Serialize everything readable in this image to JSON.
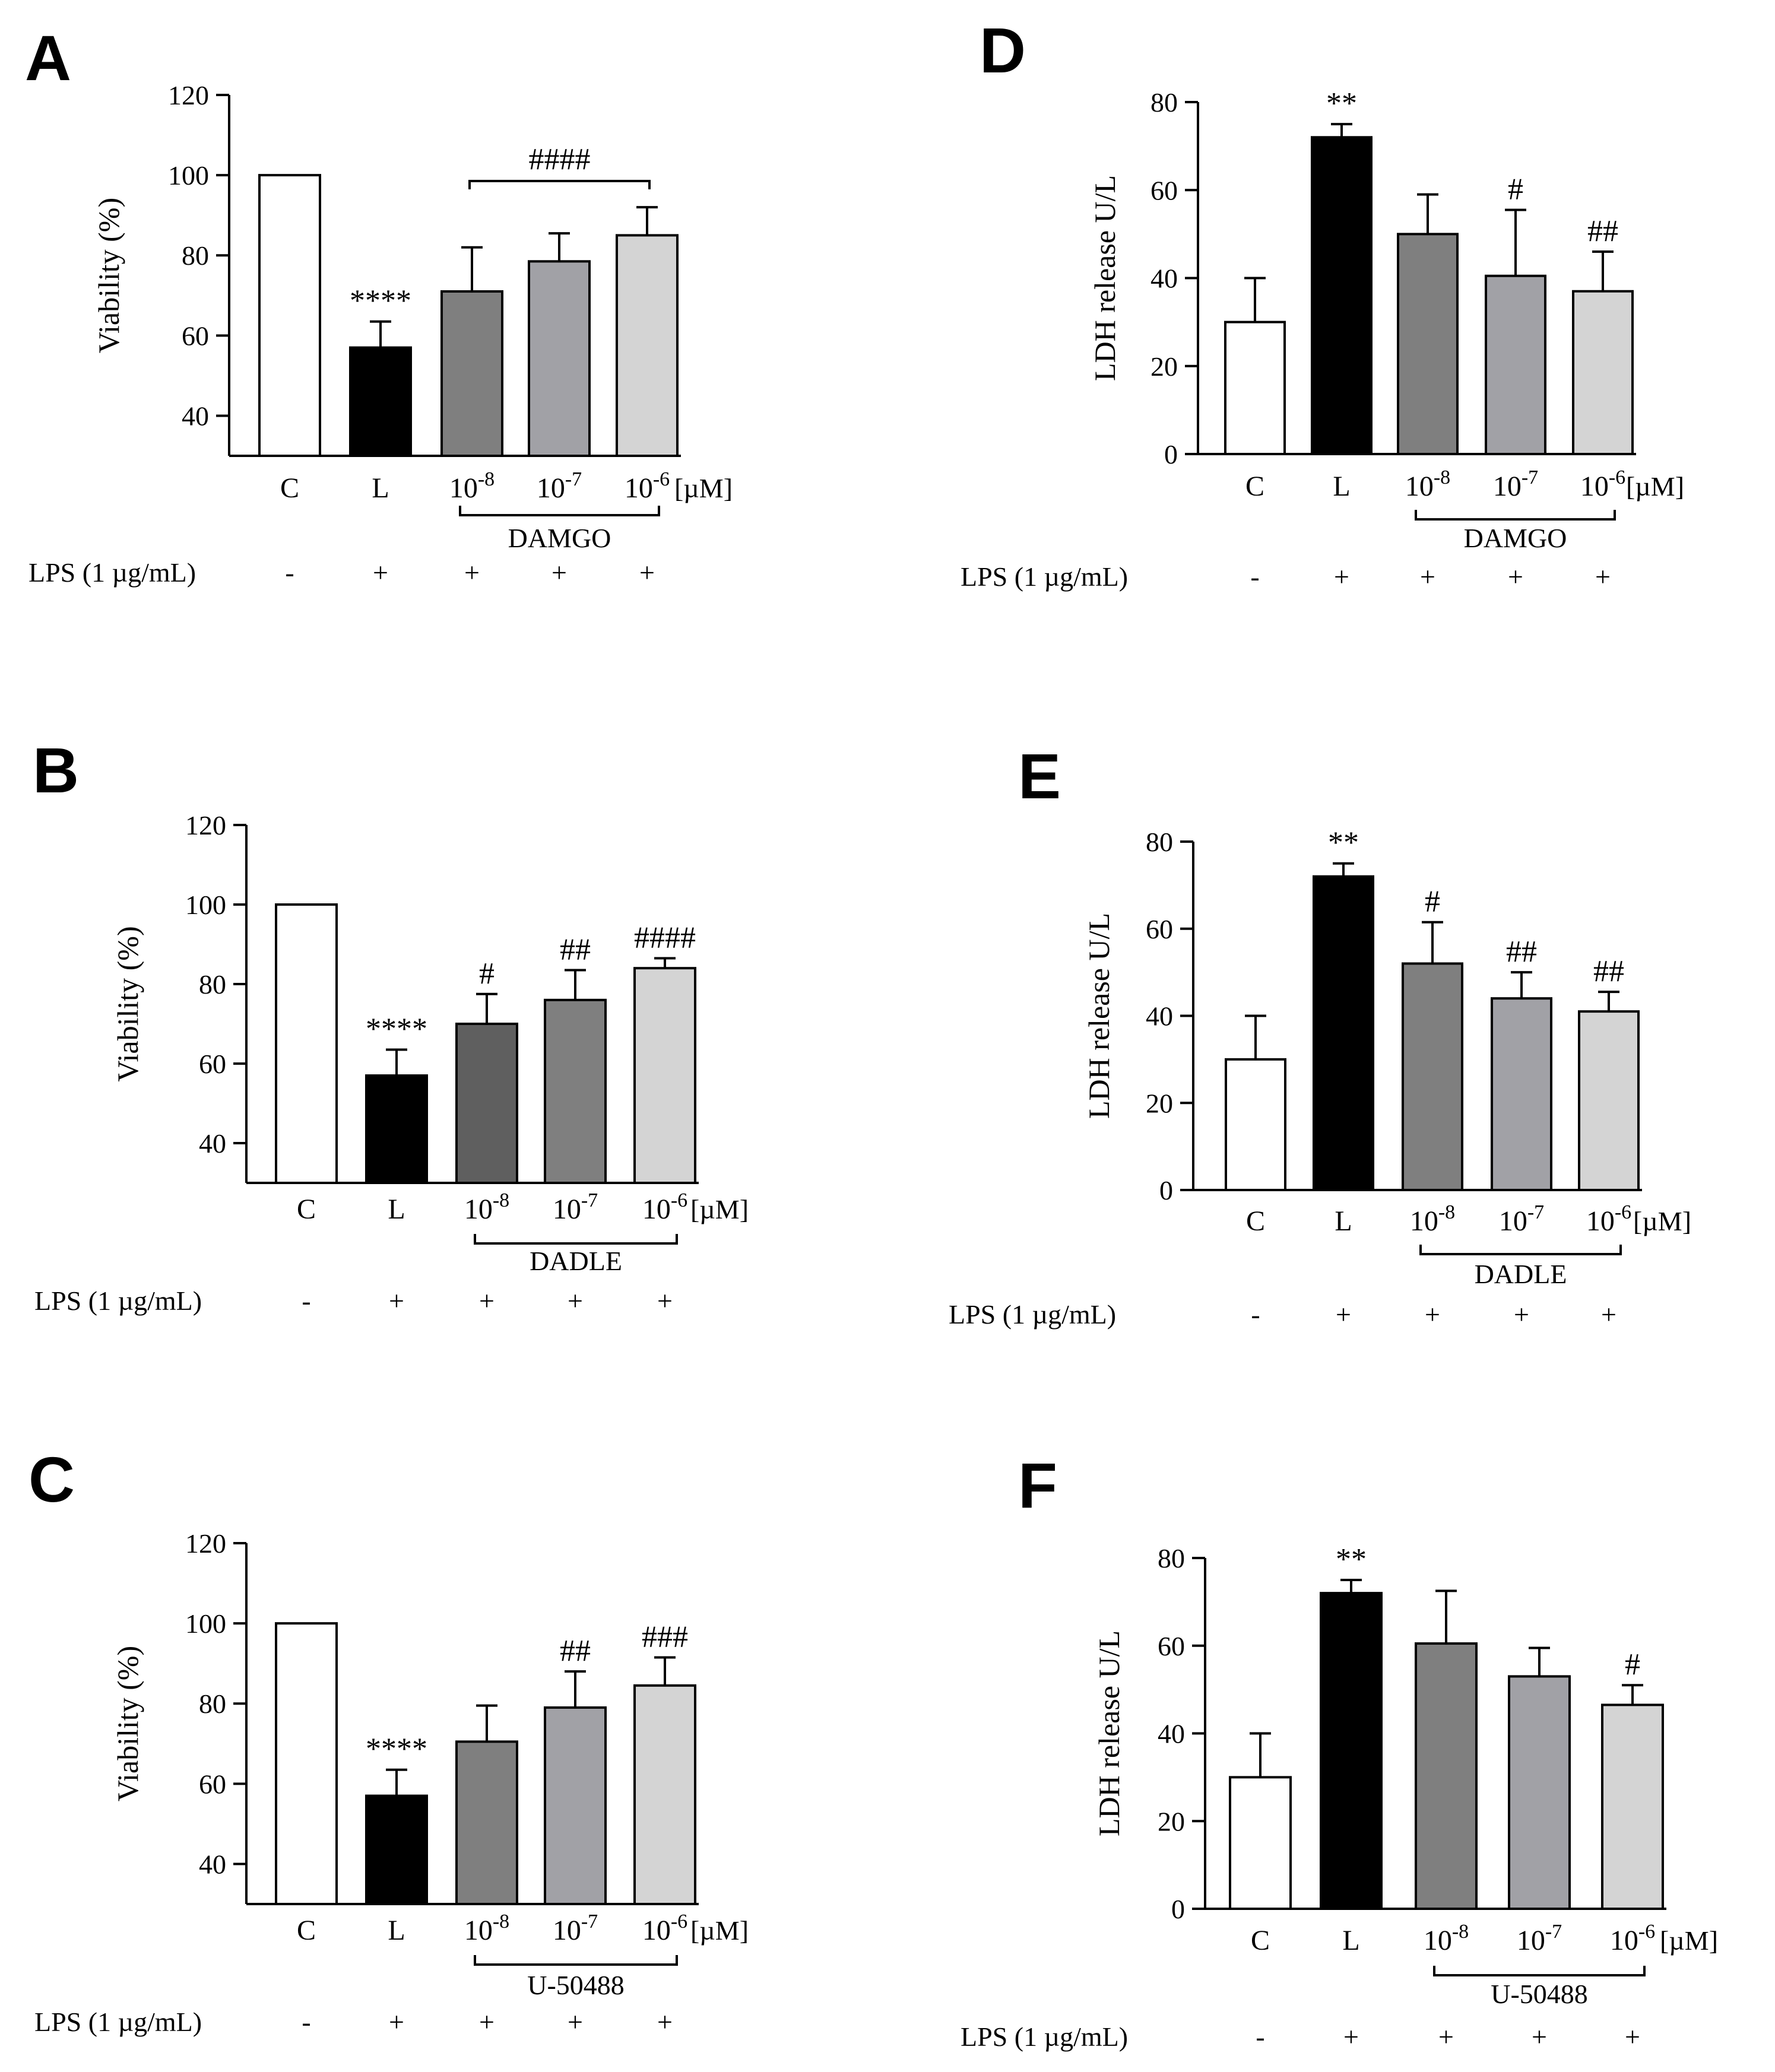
{
  "figure": {
    "treatment_label": "LPS (1 µg/mL)",
    "unit_label": "[µM]",
    "conc_base": "10",
    "bar_colors": [
      "#ffffff",
      "#000000",
      "#7f7f7f",
      "#a1a1a6",
      "#d4d4d4"
    ],
    "bar_colors_dadle": [
      "#ffffff",
      "#000000",
      "#5f5f5f",
      "#7f7f7f",
      "#d4d4d4"
    ]
  },
  "chart_data": [
    {
      "id": "A",
      "panel_label": "A",
      "type": "bar",
      "ylabel": "Viability (%)",
      "ylim": [
        30,
        120
      ],
      "yticks": [
        40,
        60,
        80,
        100,
        120
      ],
      "categories": [
        "C",
        "L",
        "10-8",
        "10-7",
        "10-6"
      ],
      "category_labels": [
        "C",
        "L"
      ],
      "exponents": [
        "-8",
        "-7",
        "-6"
      ],
      "values": [
        100,
        57,
        71,
        78.5,
        85
      ],
      "errors": [
        0,
        6.5,
        11,
        7,
        7
      ],
      "annotations": [
        "",
        "****",
        "",
        "",
        ""
      ],
      "bracket_annotation": "####",
      "agent": "DAMGO",
      "lps": [
        "-",
        "+",
        "+",
        "+",
        "+"
      ],
      "colors": "bar_colors"
    },
    {
      "id": "B",
      "panel_label": "B",
      "type": "bar",
      "ylabel": "Viability (%)",
      "ylim": [
        30,
        120
      ],
      "yticks": [
        40,
        60,
        80,
        100,
        120
      ],
      "categories": [
        "C",
        "L",
        "10-8",
        "10-7",
        "10-6"
      ],
      "category_labels": [
        "C",
        "L"
      ],
      "exponents": [
        "-8",
        "-7",
        "-6"
      ],
      "values": [
        100,
        57,
        70,
        76,
        84
      ],
      "errors": [
        0,
        6.5,
        7.5,
        7.5,
        2.5
      ],
      "annotations": [
        "",
        "****",
        "#",
        "##",
        "####"
      ],
      "bracket_annotation": "",
      "agent": "DADLE",
      "lps": [
        "-",
        "+",
        "+",
        "+",
        "+"
      ],
      "colors": "bar_colors_dadle"
    },
    {
      "id": "C",
      "panel_label": "C",
      "type": "bar",
      "ylabel": "Viability (%)",
      "ylim": [
        30,
        120
      ],
      "yticks": [
        40,
        60,
        80,
        100,
        120
      ],
      "categories": [
        "C",
        "L",
        "10-8",
        "10-7",
        "10-6"
      ],
      "category_labels": [
        "C",
        "L"
      ],
      "exponents": [
        "-8",
        "-7",
        "-6"
      ],
      "values": [
        100,
        57,
        70.5,
        79,
        84.5
      ],
      "errors": [
        0,
        6.5,
        9,
        9,
        7
      ],
      "annotations": [
        "",
        "****",
        "",
        "##",
        "###"
      ],
      "bracket_annotation": "",
      "agent": "U-50488",
      "lps": [
        "-",
        "+",
        "+",
        "+",
        "+"
      ],
      "colors": "bar_colors"
    },
    {
      "id": "D",
      "panel_label": "D",
      "type": "bar",
      "ylabel": "LDH release U/L",
      "ylim": [
        0,
        80
      ],
      "yticks": [
        0,
        20,
        40,
        60,
        80
      ],
      "categories": [
        "C",
        "L",
        "10-8",
        "10-7",
        "10-6"
      ],
      "category_labels": [
        "C",
        "L"
      ],
      "exponents": [
        "-8",
        "-7",
        "-6"
      ],
      "values": [
        30,
        72,
        50,
        40.5,
        37
      ],
      "errors": [
        10,
        3,
        9,
        15,
        9
      ],
      "annotations": [
        "",
        "**",
        "",
        "#",
        "##"
      ],
      "bracket_annotation": "",
      "agent": "DAMGO",
      "lps": [
        "-",
        "+",
        "+",
        "+",
        "+"
      ],
      "colors": "bar_colors"
    },
    {
      "id": "E",
      "panel_label": "E",
      "type": "bar",
      "ylabel": "LDH release U/L",
      "ylim": [
        0,
        80
      ],
      "yticks": [
        0,
        20,
        40,
        60,
        80
      ],
      "categories": [
        "C",
        "L",
        "10-8",
        "10-7",
        "10-6"
      ],
      "category_labels": [
        "C",
        "L"
      ],
      "exponents": [
        "-8",
        "-7",
        "-6"
      ],
      "values": [
        30,
        72,
        52,
        44,
        41
      ],
      "errors": [
        10,
        3,
        9.5,
        6,
        4.5
      ],
      "annotations": [
        "",
        "**",
        "#",
        "##",
        "##"
      ],
      "bracket_annotation": "",
      "agent": "DADLE",
      "lps": [
        "-",
        "+",
        "+",
        "+",
        "+"
      ],
      "colors": "bar_colors"
    },
    {
      "id": "F",
      "panel_label": "F",
      "type": "bar",
      "ylabel": "LDH release U/L",
      "ylim": [
        0,
        80
      ],
      "yticks": [
        0,
        20,
        40,
        60,
        80
      ],
      "categories": [
        "C",
        "L",
        "10-8",
        "10-7",
        "10-6"
      ],
      "category_labels": [
        "C",
        "L"
      ],
      "exponents": [
        "-8",
        "-7",
        "-6"
      ],
      "values": [
        30,
        72,
        60.5,
        53,
        46.5
      ],
      "errors": [
        10,
        3,
        12,
        6.5,
        4.5
      ],
      "annotations": [
        "",
        "**",
        "",
        "",
        "#"
      ],
      "bracket_annotation": "",
      "agent": "U-50488",
      "lps": [
        "-",
        "+",
        "+",
        "+",
        "+"
      ],
      "colors": "bar_colors"
    }
  ]
}
